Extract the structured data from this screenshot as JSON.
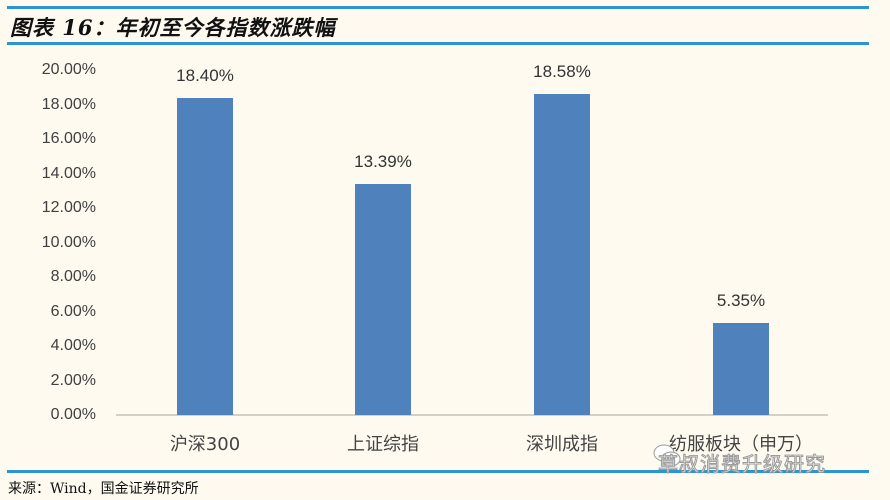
{
  "header": {
    "title": "图表 16：年初至今各指数涨跌幅"
  },
  "footer": {
    "source": "来源：Wind，国金证券研究所",
    "watermark": "草叔消费升级研究",
    "watermark_icon": "wechat-icon"
  },
  "colors": {
    "bar": "#4f81bd",
    "rule": "#2a95cf",
    "background": "#fefaf0"
  },
  "chart_data": {
    "type": "bar",
    "title": "年初至今各指数涨跌幅",
    "categories": [
      "沪深300",
      "上证综指",
      "深圳成指",
      "纺服板块（申万）"
    ],
    "values": [
      18.4,
      13.39,
      18.58,
      5.35
    ],
    "data_labels": [
      "18.40%",
      "13.39%",
      "18.58%",
      "5.35%"
    ],
    "xlabel": "",
    "ylabel": "",
    "ylim": [
      0,
      20
    ],
    "yticks": [
      "0.00%",
      "2.00%",
      "4.00%",
      "6.00%",
      "8.00%",
      "10.00%",
      "12.00%",
      "14.00%",
      "16.00%",
      "18.00%",
      "20.00%"
    ],
    "grid": false,
    "legend": "none"
  }
}
